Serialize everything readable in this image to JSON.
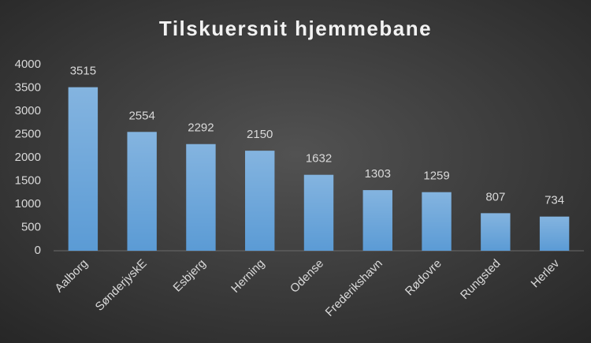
{
  "chart_data": {
    "type": "bar",
    "title": "Tilskuersnit hjemmebane",
    "categories": [
      "Aalborg",
      "SønderjyskE",
      "Esbjerg",
      "Herning",
      "Odense",
      "Frederikshavn",
      "Rødovre",
      "Rungsted",
      "Herlev"
    ],
    "values": [
      3515,
      2554,
      2292,
      2150,
      1632,
      1303,
      1259,
      807,
      734
    ],
    "color": "#5b9bd5",
    "ylim": [
      0,
      4000
    ],
    "yticks": [
      0,
      500,
      1000,
      1500,
      2000,
      2500,
      3000,
      3500,
      4000
    ],
    "grid": false
  }
}
